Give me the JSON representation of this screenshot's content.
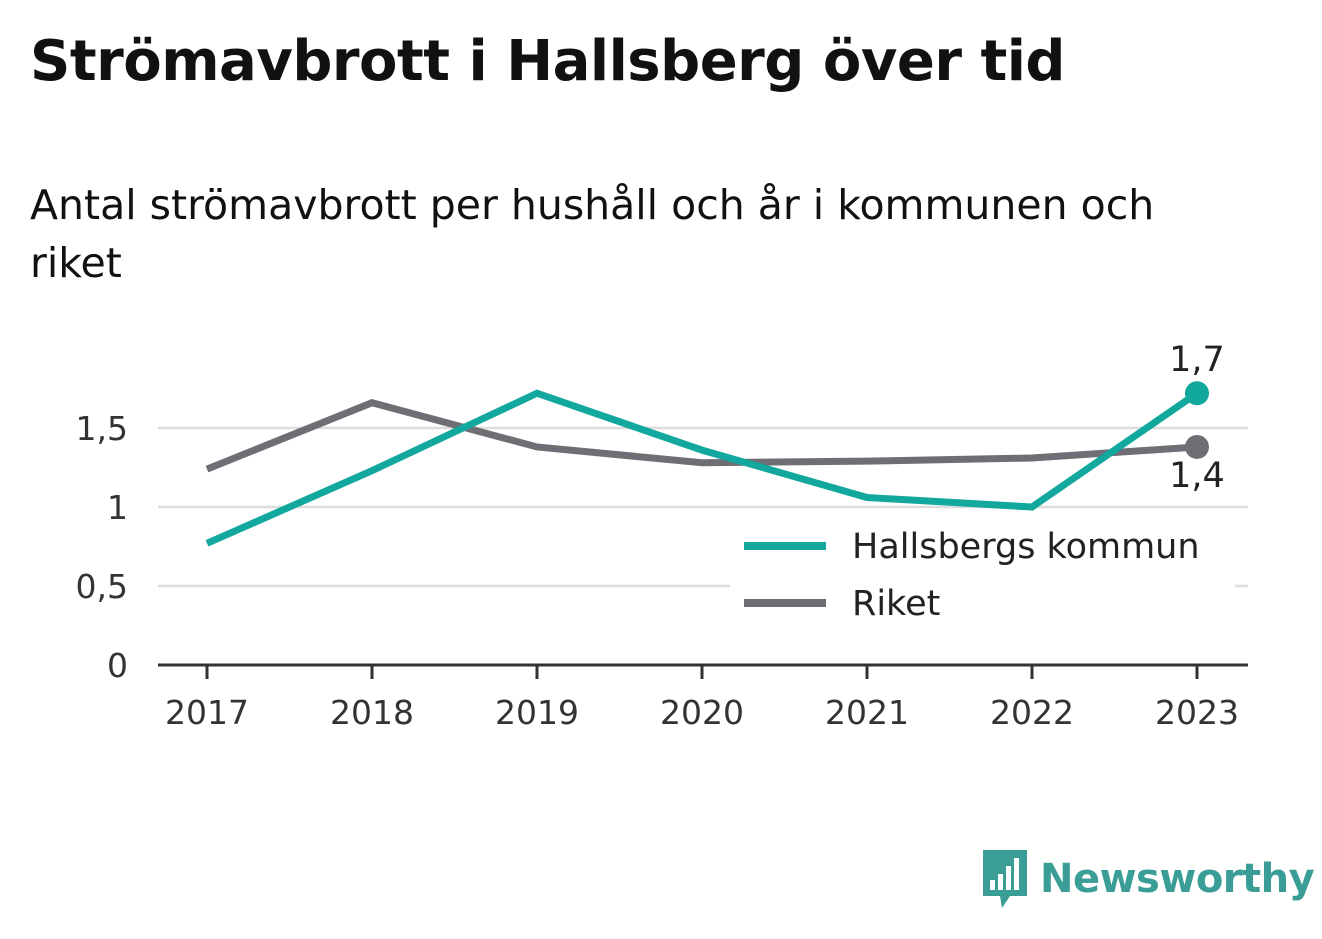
{
  "header": {
    "title": "Strömavbrott i Hallsberg över tid",
    "subtitle": "Antal strömavbrott per hushåll och år i kommunen och riket"
  },
  "colors": {
    "hallsberg": "#12a89d",
    "riket": "#6f6e75",
    "grid": "#dddddd",
    "axis": "#333333",
    "brand": "#3a9d96"
  },
  "chart_data": {
    "type": "line",
    "x": [
      "2017",
      "2018",
      "2019",
      "2020",
      "2021",
      "2022",
      "2023"
    ],
    "series": [
      {
        "name": "Hallsbergs kommun",
        "values": [
          0.77,
          1.23,
          1.72,
          1.36,
          1.06,
          1.0,
          1.72
        ],
        "end_label": "1,7",
        "color": "#12a89d"
      },
      {
        "name": "Riket",
        "values": [
          1.24,
          1.66,
          1.38,
          1.28,
          1.29,
          1.31,
          1.38
        ],
        "end_label": "1,4",
        "color": "#6f6e75"
      }
    ],
    "ylim": [
      0,
      1.8
    ],
    "yticks": [
      0,
      0.5,
      1,
      1.5
    ],
    "ytick_labels": [
      "0",
      "0,5",
      "1",
      "1,5"
    ],
    "xlabel": "",
    "ylabel": "",
    "grid": true,
    "legend_position": "bottom-right"
  },
  "footer": {
    "brand_name": "Newsworthy",
    "brand_icon": "bar-chart-speech-bubble-icon"
  }
}
